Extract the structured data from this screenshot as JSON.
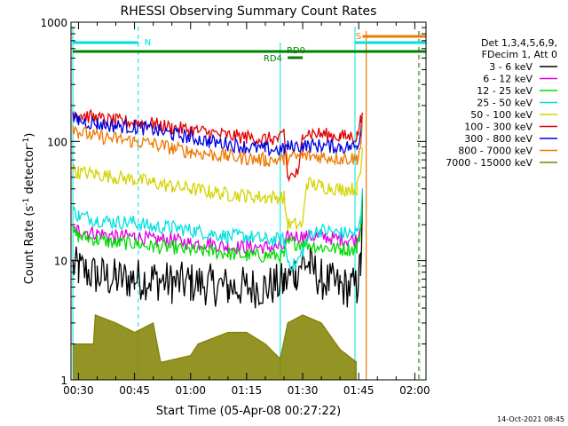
{
  "chart_data": {
    "type": "line",
    "title": "RHESSI Observing Summary Count Rates",
    "xlabel": "Start Time (05-Apr-08 00:27:22)",
    "ylabel_text": "Count Rate (s",
    "ylabel_sup": "-1",
    "ylabel_tail": " detector",
    "ylabel_sup2": "-1",
    "ylabel_close": ")",
    "footer": "14-Oct-2021 08:45",
    "yscale": "log",
    "ylim": [
      1,
      1000
    ],
    "xlim": [
      28,
      123
    ],
    "grid": false,
    "legend_position": "top-right",
    "xticks": [
      {
        "v": 30,
        "label": "00:30"
      },
      {
        "v": 45,
        "label": "00:45"
      },
      {
        "v": 60,
        "label": "01:00"
      },
      {
        "v": 75,
        "label": "01:15"
      },
      {
        "v": 90,
        "label": "01:30"
      },
      {
        "v": 105,
        "label": "01:45"
      },
      {
        "v": 120,
        "label": "02:00"
      }
    ],
    "yticks": [
      {
        "v": 1,
        "label": "1"
      },
      {
        "v": 10,
        "label": "10"
      },
      {
        "v": 100,
        "label": "100"
      },
      {
        "v": 1000,
        "label": "1000"
      }
    ],
    "legend_header": [
      "Det 1,3,4,5,6,9,",
      "FDecim 1, Att 0"
    ],
    "series": [
      {
        "name": "3 - 6 keV",
        "color": "#000000",
        "points": [
          [
            28.5,
            9.0
          ],
          [
            30,
            8.5
          ],
          [
            35,
            7.5
          ],
          [
            40,
            7.0
          ],
          [
            45,
            7.0
          ],
          [
            50,
            7.0
          ],
          [
            55,
            6.5
          ],
          [
            60,
            6.5
          ],
          [
            65,
            6.3
          ],
          [
            70,
            6.0
          ],
          [
            75,
            6.0
          ],
          [
            80,
            6.0
          ],
          [
            85,
            6.5
          ],
          [
            88,
            8.0
          ],
          [
            90,
            10.0
          ],
          [
            92,
            9.0
          ],
          [
            95,
            7.0
          ],
          [
            100,
            6.0
          ],
          [
            104.5,
            6.0
          ],
          [
            105.5,
            9.0
          ],
          [
            106,
            25.0
          ]
        ]
      },
      {
        "name": "6 - 12 keV",
        "color": "#e000e0",
        "points": [
          [
            28.5,
            18
          ],
          [
            30,
            18
          ],
          [
            35,
            17
          ],
          [
            40,
            16
          ],
          [
            45,
            16
          ],
          [
            50,
            15
          ],
          [
            55,
            15
          ],
          [
            60,
            14
          ],
          [
            65,
            14
          ],
          [
            70,
            13
          ],
          [
            75,
            13
          ],
          [
            80,
            13
          ],
          [
            85,
            13
          ],
          [
            86,
            16
          ],
          [
            90,
            16
          ],
          [
            95,
            16
          ],
          [
            100,
            15
          ],
          [
            104.5,
            15
          ],
          [
            105.5,
            20
          ],
          [
            106,
            40
          ]
        ]
      },
      {
        "name": "12 - 25 keV",
        "color": "#00dd00",
        "points": [
          [
            28.5,
            17
          ],
          [
            30,
            16
          ],
          [
            35,
            15
          ],
          [
            40,
            14
          ],
          [
            45,
            14
          ],
          [
            50,
            13
          ],
          [
            55,
            13
          ],
          [
            60,
            12
          ],
          [
            65,
            12
          ],
          [
            70,
            11.5
          ],
          [
            75,
            11
          ],
          [
            80,
            11
          ],
          [
            85,
            11
          ],
          [
            86,
            14
          ],
          [
            90,
            14
          ],
          [
            95,
            13
          ],
          [
            100,
            12.5
          ],
          [
            104.5,
            12.5
          ],
          [
            105.5,
            18
          ],
          [
            106,
            35
          ]
        ]
      },
      {
        "name": "25 - 50 keV",
        "color": "#00e0e0",
        "points": [
          [
            28.5,
            26
          ],
          [
            30,
            24
          ],
          [
            35,
            22
          ],
          [
            40,
            21
          ],
          [
            45,
            21
          ],
          [
            50,
            19
          ],
          [
            55,
            19
          ],
          [
            60,
            18
          ],
          [
            65,
            17
          ],
          [
            70,
            16
          ],
          [
            75,
            16
          ],
          [
            80,
            15
          ],
          [
            85,
            15
          ],
          [
            86,
            10
          ],
          [
            88,
            9
          ],
          [
            90,
            12
          ],
          [
            92,
            17
          ],
          [
            95,
            18
          ],
          [
            100,
            17
          ],
          [
            104.5,
            17
          ],
          [
            105.5,
            22
          ],
          [
            106,
            45
          ]
        ]
      },
      {
        "name": "50 - 100 keV",
        "color": "#d4d400",
        "points": [
          [
            28.5,
            58
          ],
          [
            30,
            55
          ],
          [
            35,
            53
          ],
          [
            40,
            50
          ],
          [
            45,
            48
          ],
          [
            50,
            45
          ],
          [
            55,
            42
          ],
          [
            60,
            40
          ],
          [
            65,
            38
          ],
          [
            70,
            36
          ],
          [
            75,
            35
          ],
          [
            80,
            34
          ],
          [
            85,
            34
          ],
          [
            86,
            20
          ],
          [
            90,
            20
          ],
          [
            91,
            45
          ],
          [
            95,
            42
          ],
          [
            100,
            40
          ],
          [
            104.5,
            40
          ],
          [
            105.5,
            55
          ],
          [
            106,
            90
          ]
        ]
      },
      {
        "name": "100 - 300 keV",
        "color": "#e00000",
        "points": [
          [
            28.5,
            175
          ],
          [
            30,
            170
          ],
          [
            35,
            155
          ],
          [
            40,
            148
          ],
          [
            45,
            145
          ],
          [
            50,
            140
          ],
          [
            55,
            130
          ],
          [
            60,
            125
          ],
          [
            65,
            118
          ],
          [
            70,
            112
          ],
          [
            75,
            108
          ],
          [
            80,
            105
          ],
          [
            84,
            105
          ],
          [
            85,
            120
          ],
          [
            86,
            50
          ],
          [
            89,
            55
          ],
          [
            90,
            120
          ],
          [
            95,
            115
          ],
          [
            100,
            110
          ],
          [
            104.5,
            110
          ],
          [
            105.5,
            150
          ],
          [
            106,
            200
          ]
        ]
      },
      {
        "name": "300 - 800 keV",
        "color": "#0000e0",
        "points": [
          [
            28.5,
            155
          ],
          [
            30,
            150
          ],
          [
            35,
            140
          ],
          [
            40,
            135
          ],
          [
            45,
            132
          ],
          [
            50,
            125
          ],
          [
            55,
            115
          ],
          [
            60,
            108
          ],
          [
            65,
            100
          ],
          [
            70,
            95
          ],
          [
            75,
            90
          ],
          [
            80,
            86
          ],
          [
            85,
            85
          ],
          [
            86,
            90
          ],
          [
            90,
            92
          ],
          [
            95,
            92
          ],
          [
            100,
            90
          ],
          [
            104.5,
            90
          ],
          [
            105.5,
            120
          ],
          [
            106,
            180
          ]
        ]
      },
      {
        "name": "800 - 7000 keV",
        "color": "#f07800",
        "points": [
          [
            28.5,
            135
          ],
          [
            30,
            120
          ],
          [
            35,
            110
          ],
          [
            40,
            105
          ],
          [
            45,
            100
          ],
          [
            50,
            95
          ],
          [
            55,
            88
          ],
          [
            60,
            82
          ],
          [
            65,
            78
          ],
          [
            70,
            75
          ],
          [
            75,
            72
          ],
          [
            80,
            70
          ],
          [
            85,
            70
          ],
          [
            86,
            72
          ],
          [
            90,
            75
          ],
          [
            95,
            75
          ],
          [
            100,
            72
          ],
          [
            104.5,
            72
          ],
          [
            105.5,
            90
          ],
          [
            106,
            150
          ]
        ]
      },
      {
        "name": "7000 - 15000 keV",
        "color": "#808000",
        "points": [
          [
            28.5,
            2.0
          ],
          [
            34,
            2.0
          ],
          [
            34.5,
            3.5
          ],
          [
            40,
            3.0
          ],
          [
            45,
            2.5
          ],
          [
            50,
            3.0
          ],
          [
            52,
            1.4
          ],
          [
            60,
            1.6
          ],
          [
            62,
            2.0
          ],
          [
            70,
            2.5
          ],
          [
            75,
            2.5
          ],
          [
            80,
            2.0
          ],
          [
            84,
            1.5
          ],
          [
            86,
            3.0
          ],
          [
            90,
            3.5
          ],
          [
            95,
            3.0
          ],
          [
            100,
            1.8
          ],
          [
            104.5,
            1.4
          ]
        ]
      }
    ],
    "annotations": [
      {
        "text": "N",
        "color": "#00e0e0"
      },
      {
        "text": "S",
        "color": "#f07800"
      },
      {
        "text": "RD0",
        "color": "#008000"
      },
      {
        "text": "RD4",
        "color": "#008000"
      }
    ]
  }
}
